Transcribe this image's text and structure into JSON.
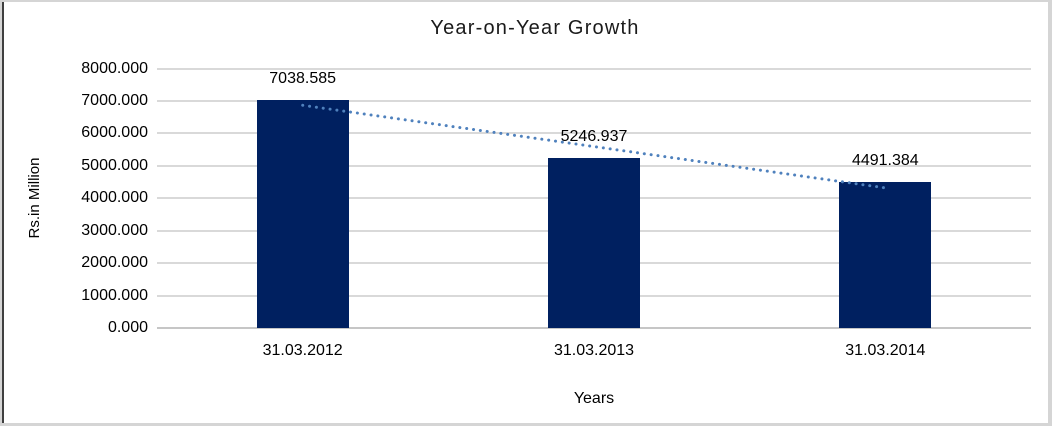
{
  "chart_data": {
    "type": "bar",
    "title": "Year-on-Year Growth",
    "xlabel": "Years",
    "ylabel": "Rs.in Million",
    "categories": [
      "31.03.2012",
      "31.03.2013",
      "31.03.2014"
    ],
    "values": [
      7038.585,
      5246.937,
      4491.384
    ],
    "data_labels": [
      "7038.585",
      "5246.937",
      "4491.384"
    ],
    "ylim": [
      0,
      8000
    ],
    "ytick_step": 1000,
    "ytick_labels": [
      "0.000",
      "1000.000",
      "2000.000",
      "3000.000",
      "4000.000",
      "5000.000",
      "6000.000",
      "7000.000",
      "8000.000"
    ],
    "grid": true,
    "legend": "none",
    "bar_color": "#002060",
    "gridline_color": "#d9d9d9",
    "zero_line_color": "#c6c6c6",
    "text_color": "#000000",
    "title_color": "#1a1a1a",
    "trendline": {
      "type": "linear",
      "style": "dotted",
      "color": "#4f81bd",
      "start_value": 6866,
      "end_value": 4319
    }
  },
  "frame": {
    "background": "#ffffff",
    "border_color": "#d5d5d5",
    "left_line_color": "#3f3f3f"
  }
}
